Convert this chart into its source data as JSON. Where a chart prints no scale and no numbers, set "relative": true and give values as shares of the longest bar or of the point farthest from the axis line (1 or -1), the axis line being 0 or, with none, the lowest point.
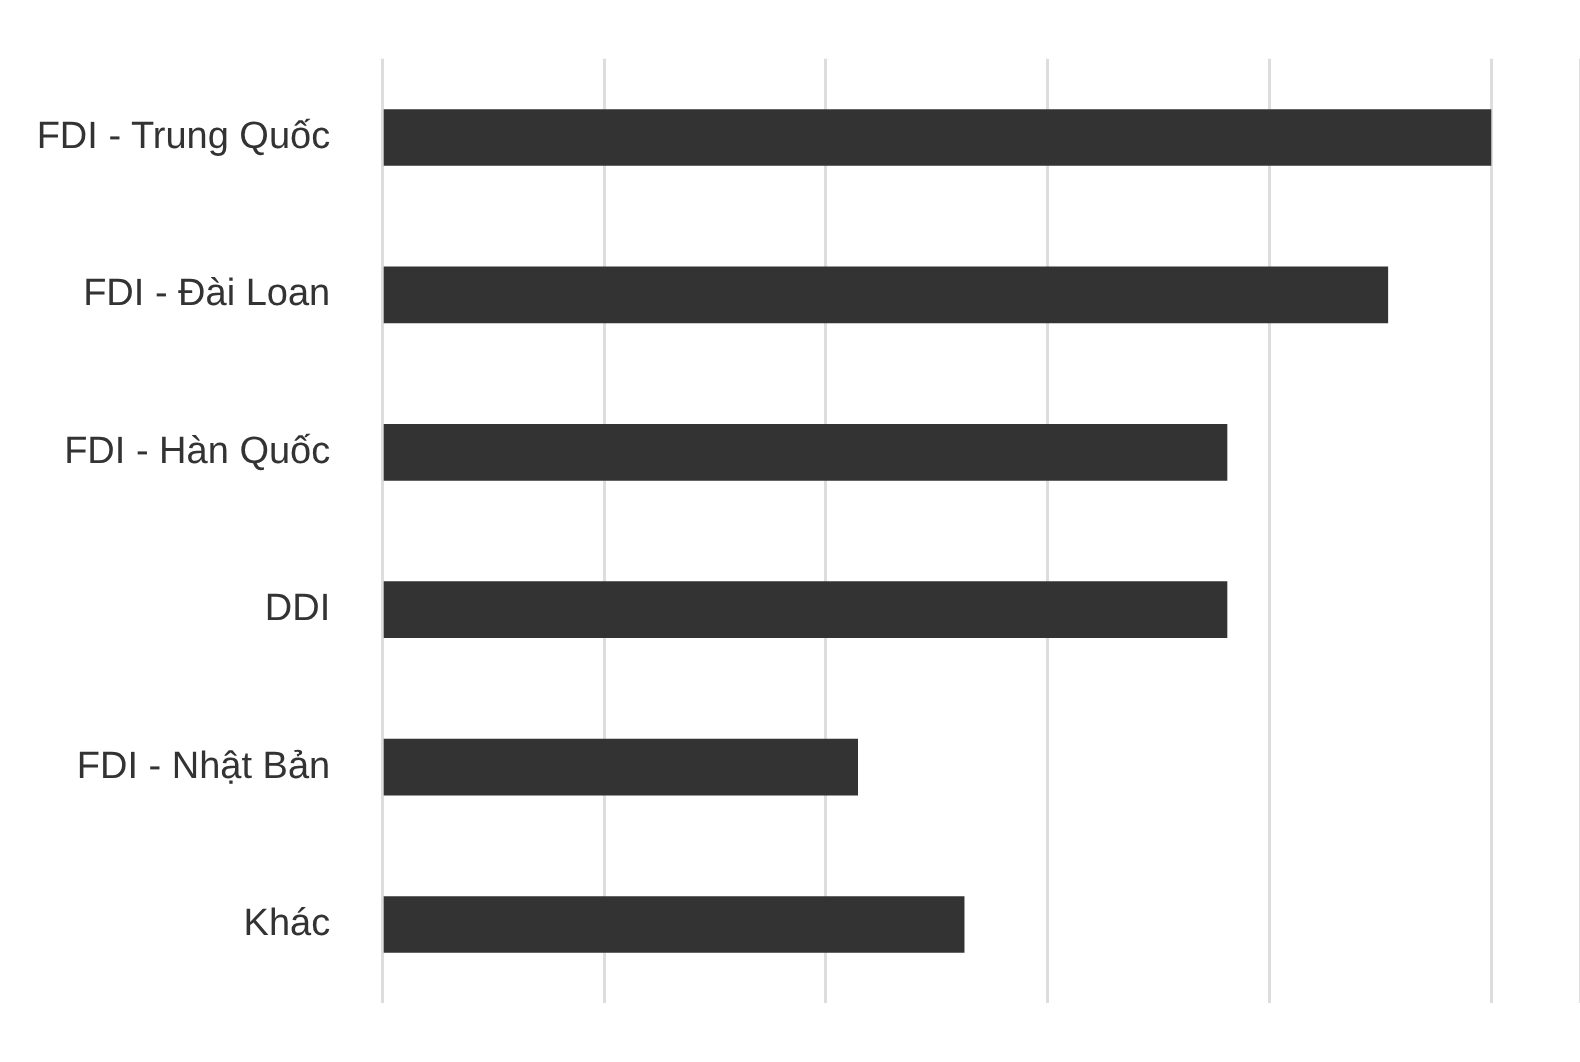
{
  "chart_data": {
    "type": "bar",
    "orientation": "horizontal",
    "relative": true,
    "grid": "x",
    "categories": [
      "FDI - Trung Quốc",
      "FDI - Đài Loan",
      "FDI - Hàn Quốc",
      "DDI",
      "FDI - Nhật Bản",
      "Khác"
    ],
    "values": [
      1,
      0.907,
      0.762,
      0.762,
      0.429,
      0.525
    ],
    "color": "#333333"
  }
}
